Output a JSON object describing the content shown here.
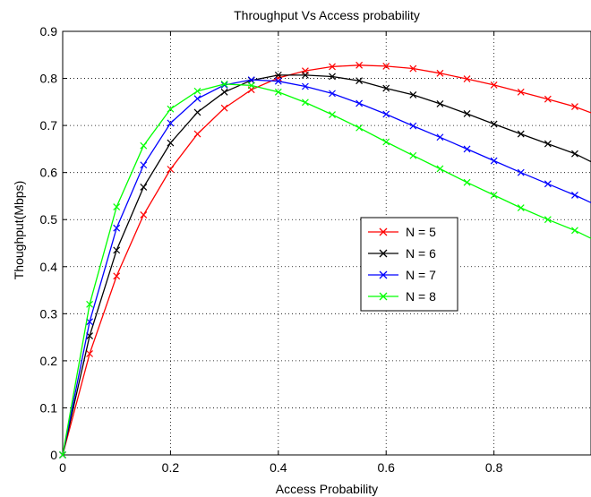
{
  "chart_data": {
    "type": "line",
    "title": "Throughput Vs Access probability",
    "xlabel": "Access Probability",
    "ylabel": "Thoughput(Mbps)",
    "xlim": [
      0,
      0.98
    ],
    "ylim": [
      0,
      0.9
    ],
    "xticks": [
      0,
      0.2,
      0.4,
      0.6,
      0.8
    ],
    "xtick_labels": [
      "0",
      "0.2",
      "0.4",
      "0.6",
      "0.8"
    ],
    "yticks": [
      0,
      0.1,
      0.2,
      0.3,
      0.4,
      0.5,
      0.6,
      0.7,
      0.8,
      0.9
    ],
    "ytick_labels": [
      "0",
      "0.1",
      "0.2",
      "0.3",
      "0.4",
      "0.5",
      "0.6",
      "0.7",
      "0.8",
      "0.9"
    ],
    "grid": true,
    "legend_position": "right-center",
    "marker": "x",
    "x": [
      0,
      0.05,
      0.1,
      0.15,
      0.2,
      0.25,
      0.3,
      0.35,
      0.4,
      0.45,
      0.5,
      0.55,
      0.6,
      0.65,
      0.7,
      0.75,
      0.8,
      0.85,
      0.9,
      0.95,
      0.98
    ],
    "series": [
      {
        "name": "N = 5",
        "color": "#ff0000",
        "values": [
          0,
          0.215,
          0.38,
          0.51,
          0.607,
          0.682,
          0.737,
          0.776,
          0.801,
          0.816,
          0.825,
          0.828,
          0.826,
          0.821,
          0.811,
          0.799,
          0.786,
          0.771,
          0.756,
          0.74,
          0.727
        ]
      },
      {
        "name": "N = 6",
        "color": "#000000",
        "values": [
          0,
          0.253,
          0.435,
          0.569,
          0.663,
          0.728,
          0.771,
          0.796,
          0.807,
          0.807,
          0.804,
          0.795,
          0.779,
          0.765,
          0.746,
          0.725,
          0.703,
          0.682,
          0.661,
          0.64,
          0.623
        ]
      },
      {
        "name": "N = 7",
        "color": "#0000ff",
        "values": [
          0,
          0.283,
          0.482,
          0.616,
          0.705,
          0.757,
          0.786,
          0.797,
          0.794,
          0.783,
          0.768,
          0.747,
          0.724,
          0.699,
          0.675,
          0.65,
          0.625,
          0.6,
          0.576,
          0.552,
          0.536
        ]
      },
      {
        "name": "N = 8",
        "color": "#00ff00",
        "values": [
          0,
          0.32,
          0.527,
          0.657,
          0.735,
          0.773,
          0.788,
          0.785,
          0.771,
          0.749,
          0.723,
          0.695,
          0.665,
          0.636,
          0.608,
          0.579,
          0.552,
          0.525,
          0.5,
          0.477,
          0.46
        ]
      }
    ]
  }
}
